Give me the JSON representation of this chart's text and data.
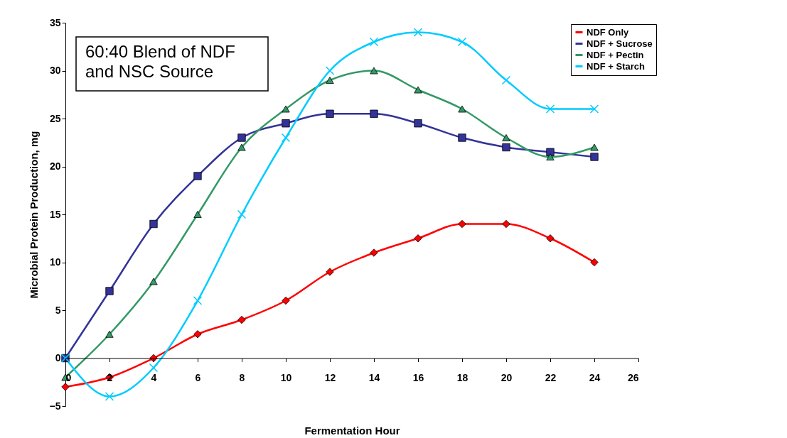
{
  "chart_data": {
    "type": "line",
    "xlabel": "Fermentation Hour",
    "ylabel": "Microbial Protein Production, mg",
    "annotations": [
      "60:40 Blend of NDF\nand NSC Source"
    ],
    "x": [
      0,
      2,
      4,
      6,
      8,
      10,
      12,
      14,
      16,
      18,
      20,
      22,
      24
    ],
    "series": [
      {
        "name": "NDF Only",
        "color": "#ff0000",
        "marker": "diamond",
        "values": [
          -3,
          -2,
          0,
          2.5,
          4,
          6,
          9,
          11,
          12.5,
          14,
          14,
          12.5,
          10
        ]
      },
      {
        "name": "NDF + Sucrose",
        "color": "#333399",
        "marker": "square",
        "values": [
          0,
          7,
          14,
          19,
          23,
          24.5,
          25.5,
          25.5,
          24.5,
          23,
          22,
          21.5,
          21
        ]
      },
      {
        "name": "NDF + Pectin",
        "color": "#339966",
        "marker": "triangle",
        "values": [
          -2,
          2.5,
          8,
          15,
          22,
          26,
          29,
          30,
          28,
          26,
          23,
          21,
          22
        ]
      },
      {
        "name": "NDF + Starch",
        "color": "#00ccff",
        "marker": "cross",
        "values": [
          0,
          -4,
          -1,
          6,
          15,
          23,
          30,
          33,
          34,
          33,
          29,
          26,
          26
        ]
      }
    ],
    "xlim": [
      0,
      26
    ],
    "xticks": [
      0,
      2,
      4,
      6,
      8,
      10,
      12,
      14,
      16,
      18,
      20,
      22,
      24,
      26
    ],
    "ylim": [
      -5,
      35
    ],
    "yticks": [
      -5,
      0,
      5,
      10,
      15,
      20,
      25,
      30,
      35
    ],
    "grid": false,
    "legend": "top right",
    "line_style": "solid"
  }
}
